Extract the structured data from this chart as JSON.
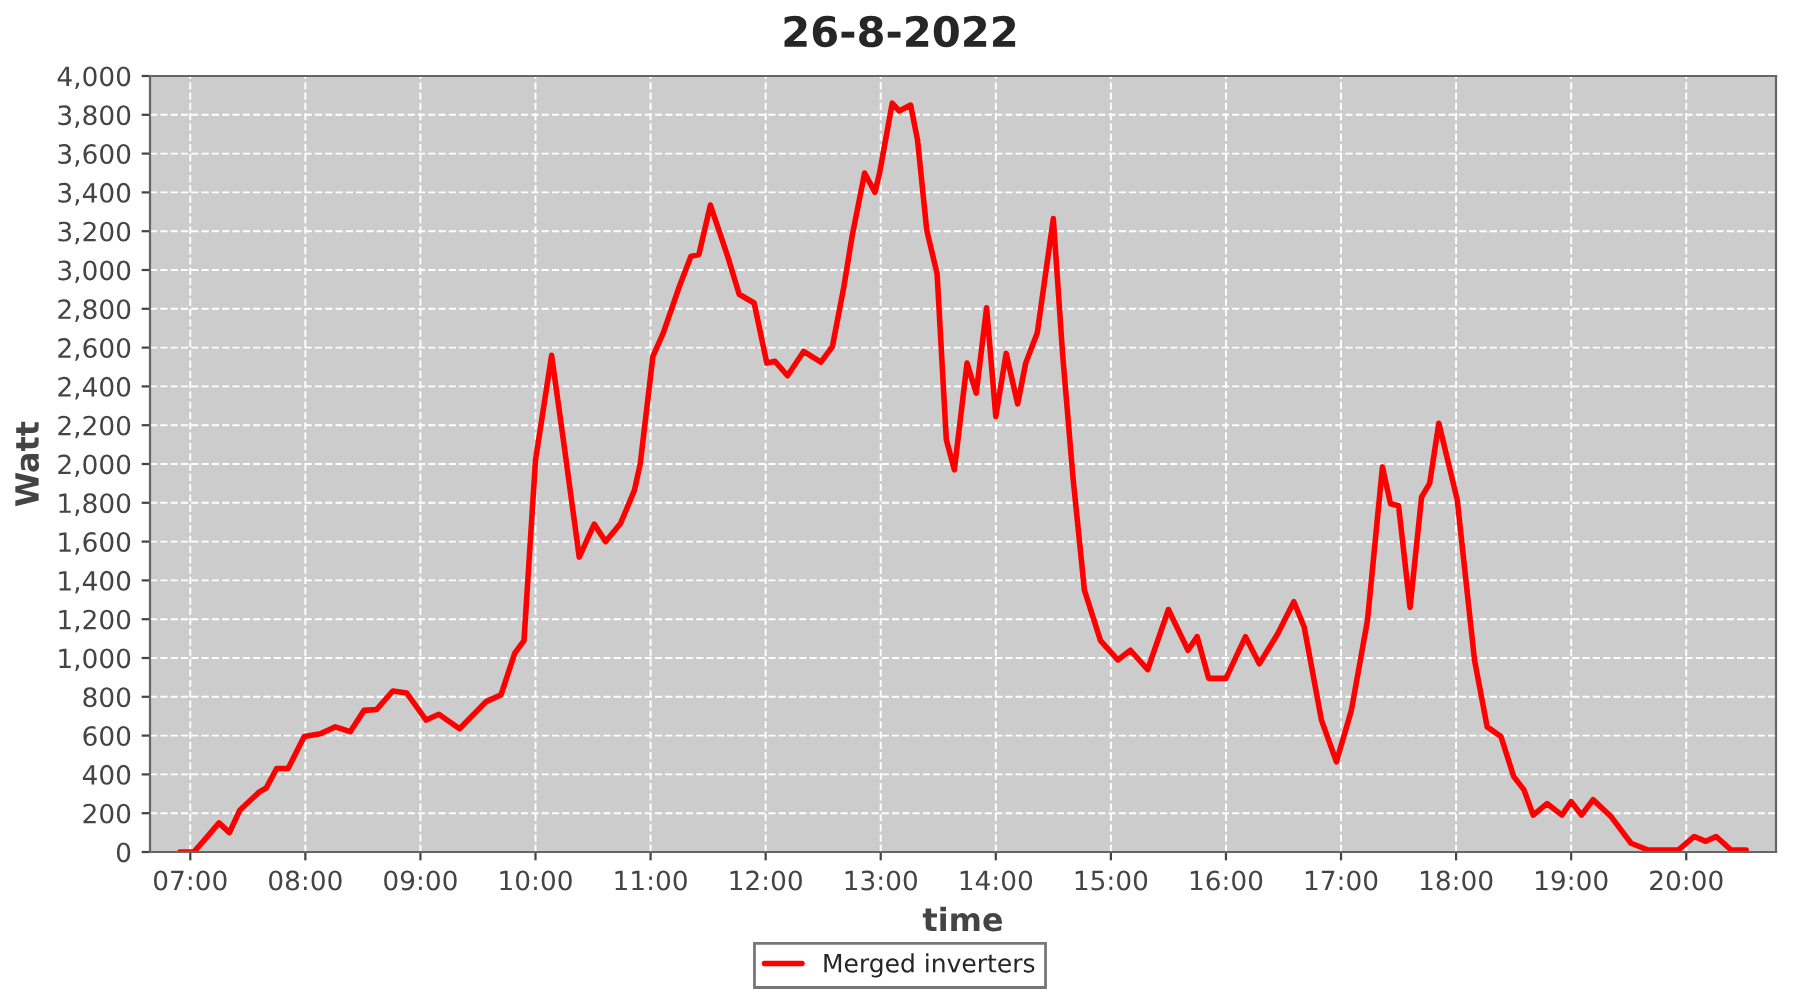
{
  "chart_data": {
    "type": "line",
    "title": "26-8-2022",
    "xlabel": "time",
    "ylabel": "Watt",
    "x": [
      6.91,
      7.03,
      7.12,
      7.25,
      7.34,
      7.43,
      7.6,
      7.66,
      7.75,
      7.85,
      7.99,
      8.13,
      8.26,
      8.39,
      8.51,
      8.62,
      8.76,
      8.88,
      9.05,
      9.16,
      9.34,
      9.57,
      9.7,
      9.82,
      9.9,
      10.0,
      10.14,
      10.25,
      10.38,
      10.51,
      10.61,
      10.74,
      10.86,
      10.91,
      11.02,
      11.11,
      11.25,
      11.35,
      11.42,
      11.52,
      11.67,
      11.77,
      11.9,
      12.01,
      12.08,
      12.19,
      12.33,
      12.48,
      12.58,
      12.68,
      12.75,
      12.86,
      12.95,
      12.99,
      13.1,
      13.16,
      13.26,
      13.32,
      13.4,
      13.49,
      13.57,
      13.64,
      13.75,
      13.83,
      13.92,
      14.0,
      14.09,
      14.19,
      14.26,
      14.36,
      14.5,
      14.58,
      14.67,
      14.77,
      14.91,
      15.06,
      15.17,
      15.32,
      15.5,
      15.67,
      15.75,
      15.85,
      16.0,
      16.17,
      16.29,
      16.45,
      16.59,
      16.68,
      16.83,
      16.96,
      17.09,
      17.23,
      17.36,
      17.43,
      17.5,
      17.6,
      17.7,
      17.77,
      17.85,
      18.01,
      18.16,
      18.27,
      18.39,
      18.5,
      18.59,
      18.67,
      18.79,
      18.92,
      19.0,
      19.09,
      19.19,
      19.35,
      19.52,
      19.67,
      19.93,
      20.07,
      20.17,
      20.26,
      20.39,
      20.52
    ],
    "series": [
      {
        "name": "Merged inverters",
        "color": "#ff0000",
        "values": [
          0,
          0,
          60,
          150,
          100,
          215,
          310,
          330,
          430,
          430,
          595,
          610,
          645,
          620,
          730,
          735,
          830,
          820,
          680,
          710,
          635,
          775,
          810,
          1025,
          1090,
          2020,
          2560,
          2090,
          1520,
          1690,
          1600,
          1695,
          1865,
          2000,
          2555,
          2675,
          2915,
          3070,
          3080,
          3335,
          3070,
          2875,
          2830,
          2520,
          2530,
          2455,
          2580,
          2525,
          2605,
          2915,
          3170,
          3500,
          3400,
          3500,
          3860,
          3820,
          3850,
          3670,
          3205,
          2980,
          2125,
          1970,
          2520,
          2365,
          2805,
          2245,
          2570,
          2310,
          2520,
          2675,
          3265,
          2570,
          1935,
          1350,
          1090,
          990,
          1040,
          940,
          1250,
          1040,
          1110,
          895,
          895,
          1110,
          970,
          1125,
          1290,
          1160,
          680,
          465,
          730,
          1195,
          1985,
          1795,
          1785,
          1260,
          1830,
          1900,
          2210,
          1815,
          990,
          645,
          595,
          390,
          320,
          190,
          250,
          190,
          260,
          190,
          270,
          180,
          45,
          10,
          10,
          80,
          55,
          80,
          10,
          10
        ]
      }
    ],
    "xlim": [
      6.65,
      20.78
    ],
    "xticks": [
      {
        "value": 7,
        "label": "07:00"
      },
      {
        "value": 8,
        "label": "08:00"
      },
      {
        "value": 9,
        "label": "09:00"
      },
      {
        "value": 10,
        "label": "10:00"
      },
      {
        "value": 11,
        "label": "11:00"
      },
      {
        "value": 12,
        "label": "12:00"
      },
      {
        "value": 13,
        "label": "13:00"
      },
      {
        "value": 14,
        "label": "14:00"
      },
      {
        "value": 15,
        "label": "15:00"
      },
      {
        "value": 16,
        "label": "16:00"
      },
      {
        "value": 17,
        "label": "17:00"
      },
      {
        "value": 18,
        "label": "18:00"
      },
      {
        "value": 19,
        "label": "19:00"
      },
      {
        "value": 20,
        "label": "20:00"
      }
    ],
    "ylim": [
      0,
      4000
    ],
    "yticks": [
      {
        "value": 0,
        "label": "0"
      },
      {
        "value": 200,
        "label": "200"
      },
      {
        "value": 400,
        "label": "400"
      },
      {
        "value": 600,
        "label": "600"
      },
      {
        "value": 800,
        "label": "800"
      },
      {
        "value": 1000,
        "label": "1,000"
      },
      {
        "value": 1200,
        "label": "1,200"
      },
      {
        "value": 1400,
        "label": "1,400"
      },
      {
        "value": 1600,
        "label": "1,600"
      },
      {
        "value": 1800,
        "label": "1,800"
      },
      {
        "value": 2000,
        "label": "2,000"
      },
      {
        "value": 2200,
        "label": "2,200"
      },
      {
        "value": 2400,
        "label": "2,400"
      },
      {
        "value": 2600,
        "label": "2,600"
      },
      {
        "value": 2800,
        "label": "2,800"
      },
      {
        "value": 3000,
        "label": "3,000"
      },
      {
        "value": 3200,
        "label": "3,200"
      },
      {
        "value": 3400,
        "label": "3,400"
      },
      {
        "value": 3600,
        "label": "3,600"
      },
      {
        "value": 3800,
        "label": "3,800"
      },
      {
        "value": 4000,
        "label": "4,000"
      }
    ],
    "grid": true,
    "legend": "bottom",
    "marker": "none",
    "line_style": "solid"
  }
}
